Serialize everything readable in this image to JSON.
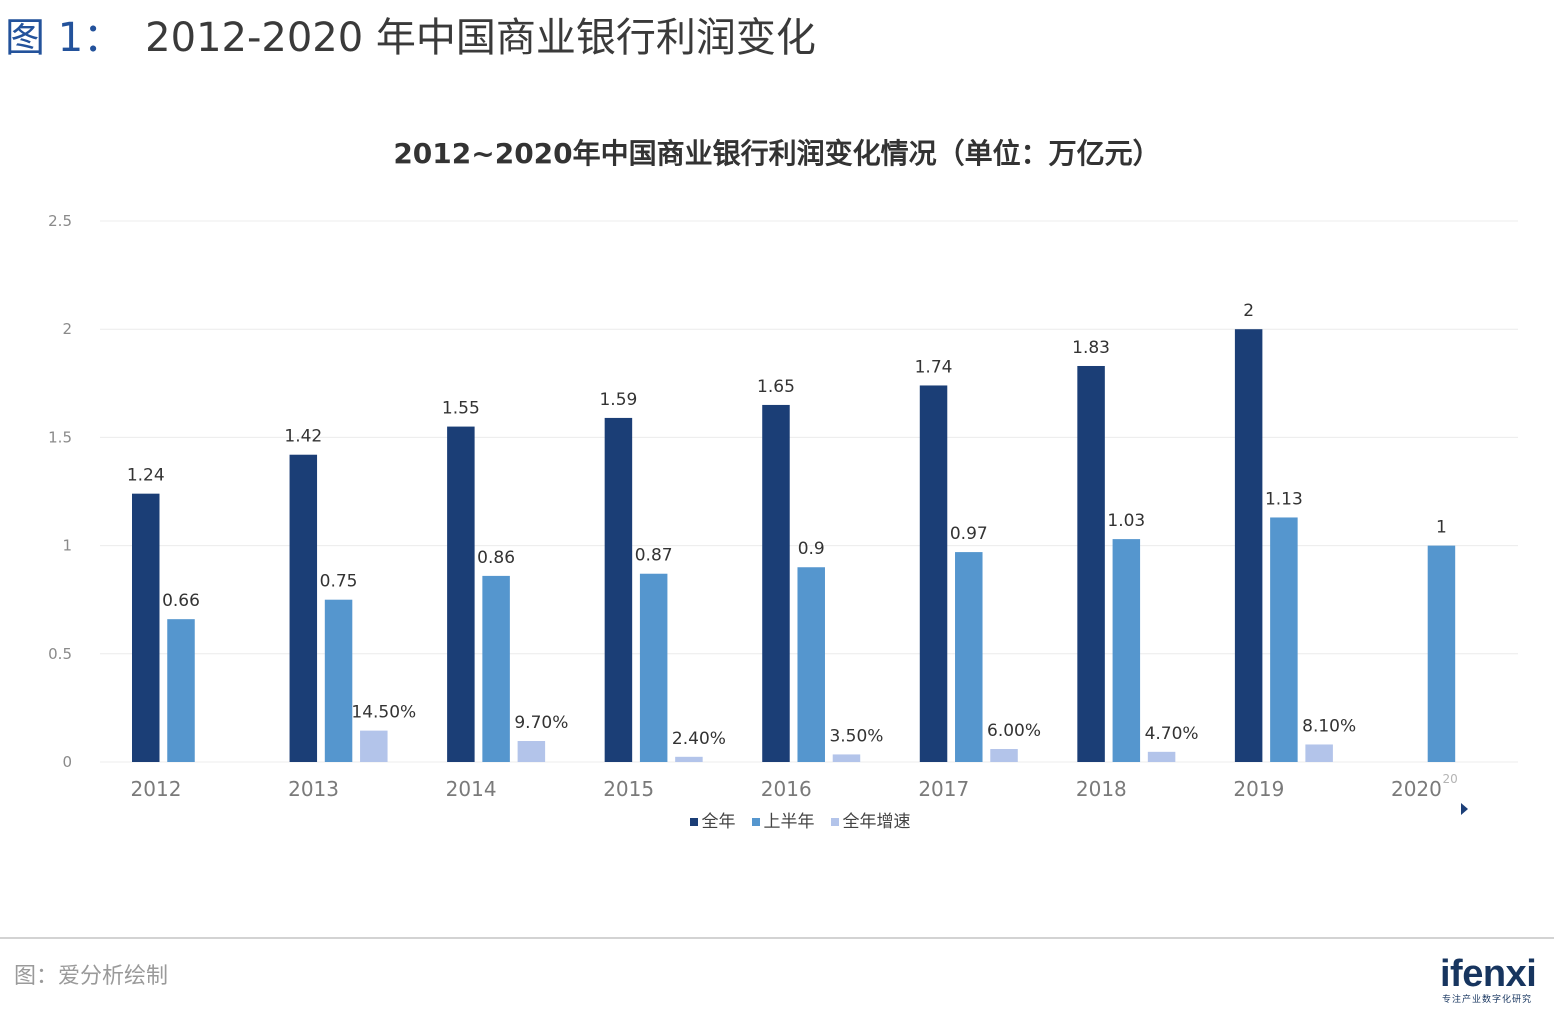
{
  "figure": {
    "label": "图 1：",
    "caption": "2012-2020 年中国商业银行利润变化"
  },
  "chart_data": {
    "type": "bar",
    "title": "2012~2020年中国商业银行利润变化情况（单位：万亿元）",
    "categories": [
      "2012",
      "2013",
      "2014",
      "2015",
      "2016",
      "2017",
      "2018",
      "2019",
      "2020"
    ],
    "tick_superscripts": [
      null,
      null,
      null,
      null,
      null,
      null,
      null,
      null,
      "20"
    ],
    "ylim": [
      0,
      2.5
    ],
    "yticks": [
      0,
      0.5,
      1,
      1.5,
      2,
      2.5
    ],
    "grid": true,
    "legend_position": "bottom",
    "series": [
      {
        "name": "全年",
        "color": "#1b3e76",
        "values": [
          1.24,
          1.42,
          1.55,
          1.59,
          1.65,
          1.74,
          1.83,
          2,
          null
        ]
      },
      {
        "name": "上半年",
        "color": "#5596ce",
        "values": [
          0.66,
          0.75,
          0.86,
          0.87,
          0.9,
          0.97,
          1.03,
          1.13,
          1
        ]
      },
      {
        "name": "全年增速",
        "color": "#b3c4ea",
        "values": [
          null,
          0.145,
          0.097,
          0.024,
          0.035,
          0.06,
          0.047,
          0.081,
          null
        ],
        "data_labels": [
          null,
          "14.50%",
          "9.70%",
          "2.40%",
          "3.50%",
          "6.00%",
          "4.70%",
          "8.10%",
          null
        ]
      }
    ]
  },
  "legend": {
    "pager_icon": "triangle-right-icon"
  },
  "footer": {
    "source": "图：爱分析绘制",
    "logo_text": "ifenxi",
    "logo_tagline": "专注产业数字化研究"
  }
}
